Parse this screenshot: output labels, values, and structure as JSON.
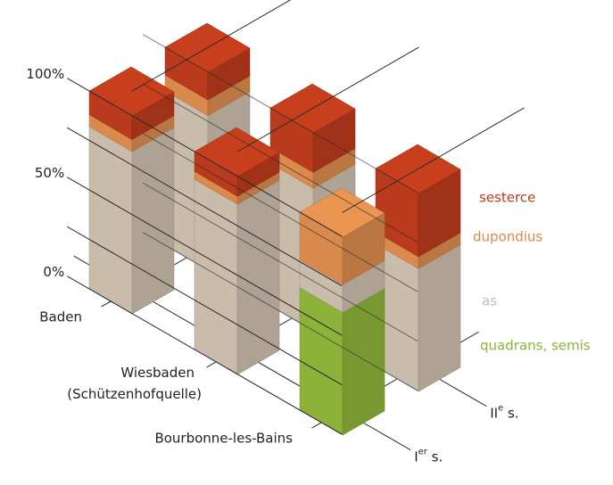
{
  "chart_data": {
    "type": "bar3d",
    "categories": [
      "Baden",
      "Wiesbaden (Schützenhofquelle)",
      "Bourbonne-les-Bains"
    ],
    "periods": [
      "Ier s.",
      "IIe s."
    ],
    "series": [
      {
        "name": "quadrans, semis",
        "color": "#8cb23a",
        "values": [
          [
            0,
            0,
            62
          ],
          [
            0,
            0,
            0
          ]
        ]
      },
      {
        "name": "as",
        "color": "#c9bcab",
        "values": [
          [
            82,
            86,
            14
          ],
          [
            78,
            72,
            62
          ]
        ]
      },
      {
        "name": "dupondius",
        "color": "#d98a4c",
        "values": [
          [
            6,
            4,
            24
          ],
          [
            8,
            8,
            6
          ]
        ]
      },
      {
        "name": "sesterce",
        "color": "#b93a1c",
        "values": [
          [
            12,
            10,
            0
          ],
          [
            14,
            20,
            32
          ]
        ]
      }
    ],
    "ylim": [
      0,
      100
    ],
    "yticks": [
      {
        "value": 0,
        "label": "0%"
      },
      {
        "value": 25
      },
      {
        "value": 50,
        "label": "50%"
      },
      {
        "value": 75
      },
      {
        "value": 100,
        "label": "100%"
      }
    ]
  }
}
